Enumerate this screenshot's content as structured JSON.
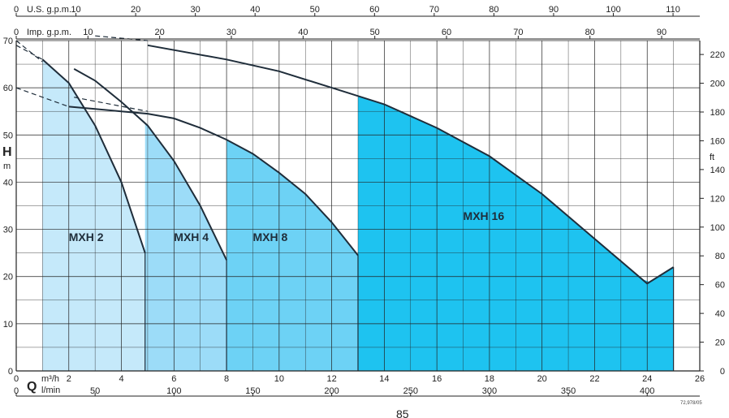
{
  "chart_data": {
    "type": "area",
    "title": "",
    "x_primary": {
      "unit": "m³/h",
      "ticks": [
        0,
        2,
        4,
        6,
        8,
        10,
        12,
        14,
        16,
        18,
        20,
        22,
        24,
        26
      ],
      "range": [
        0,
        26
      ]
    },
    "x_lmin": {
      "unit": "l/min",
      "ticks": [
        0,
        50,
        100,
        150,
        200,
        250,
        300,
        350,
        400
      ]
    },
    "x_usgpm": {
      "label": "U.S. g.p.m.",
      "ticks": [
        0,
        10,
        20,
        30,
        40,
        50,
        60,
        70,
        80,
        90,
        100,
        110
      ]
    },
    "x_impgpm": {
      "label": "Imp. g.p.m.",
      "ticks": [
        0,
        10,
        20,
        30,
        40,
        50,
        60,
        70,
        80,
        90
      ]
    },
    "y_left": {
      "label": "H",
      "unit": "m",
      "ticks": [
        0,
        10,
        20,
        30,
        40,
        50,
        60,
        70
      ],
      "range": [
        0,
        70
      ]
    },
    "y_right": {
      "unit": "ft",
      "ticks": [
        0,
        20,
        40,
        60,
        80,
        100,
        120,
        140,
        160,
        180,
        200,
        220
      ]
    },
    "grid": true,
    "series": [
      {
        "name": "MXH 16",
        "color": "#1ec3f0",
        "x": [
          5,
          8,
          10,
          12,
          14,
          16,
          18,
          20,
          22,
          24,
          25
        ],
        "y": [
          69,
          66,
          63.5,
          60,
          56.5,
          51.5,
          45.5,
          37.5,
          28,
          18.5,
          22
        ],
        "band_start": 13,
        "band_end": 25,
        "label_at": [
          17,
          32
        ]
      },
      {
        "name": "MXH 8",
        "color": "#6dd2f5",
        "x": [
          2,
          3,
          4,
          5,
          6,
          7,
          8,
          9,
          10,
          11,
          12,
          13
        ],
        "y": [
          56,
          55.5,
          55,
          54.5,
          53.5,
          51.5,
          49,
          46,
          42,
          37.5,
          31.5,
          24.5
        ],
        "band_start": 8,
        "band_end": 13,
        "label_at": [
          9,
          27.5
        ]
      },
      {
        "name": "MXH 4",
        "color": "#9cdcf8",
        "x": [
          2.2,
          3,
          4,
          5,
          6,
          7,
          8
        ],
        "y": [
          64,
          61.5,
          57,
          52,
          44.5,
          35,
          23.5
        ],
        "band_start": 4.9,
        "band_end": 8,
        "label_at": [
          6,
          27.5
        ]
      },
      {
        "name": "MXH 2",
        "color": "#c5e9fa",
        "x": [
          1,
          2,
          3,
          4,
          4.9
        ],
        "y": [
          66,
          61,
          52,
          40,
          25
        ],
        "band_start": 1,
        "band_end": 4.9,
        "label_at": [
          2,
          27.5
        ]
      }
    ],
    "dashed_extensions": [
      {
        "x": [
          0,
          1
        ],
        "y": [
          69,
          66
        ]
      },
      {
        "x": [
          0,
          1
        ],
        "y": [
          70,
          65.5
        ]
      },
      {
        "x": [
          0,
          2
        ],
        "y": [
          60,
          56
        ]
      },
      {
        "x": [
          2.2,
          5
        ],
        "y": [
          58,
          55
        ]
      },
      {
        "x": [
          3,
          5
        ],
        "y": [
          71,
          70
        ]
      }
    ],
    "legend": "none"
  },
  "labels": {
    "usgpm": "U.S. g.p.m.",
    "impgpm": "Imp. g.p.m.",
    "h_letter": "H",
    "h_unit": "m",
    "ft_unit": "ft",
    "q_letter": "Q",
    "m3h_unit": "m³/h",
    "lmin_unit": "l/min",
    "code": "72,978/05",
    "page_number": "85"
  }
}
